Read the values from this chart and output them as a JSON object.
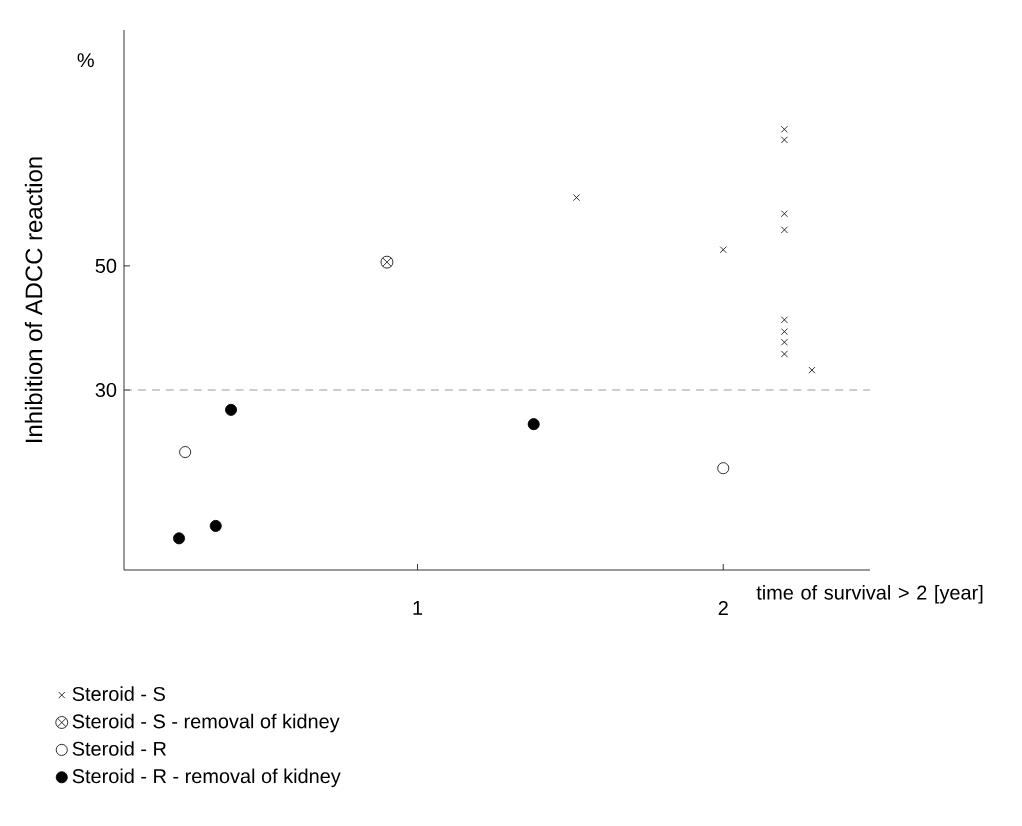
{
  "chart_data": {
    "type": "scatter",
    "ylabel": "Inhibition of ADCC reaction",
    "xlabel": "time of survival > 2 [year]",
    "annotations": [
      "%"
    ],
    "xlim": [
      0.04,
      2.48
    ],
    "xticks": [
      1,
      2
    ],
    "ylim": [
      1,
      88
    ],
    "yticks": [
      30,
      50
    ],
    "ref_lines": [
      {
        "axis": "y",
        "value": 30,
        "line_style": "dashed"
      }
    ],
    "grid": false,
    "legend": "bottom left",
    "series": [
      {
        "name": "Steroid - S",
        "color": "#000000",
        "marker": "cross",
        "x": [
          1.52,
          2.0,
          2.2,
          2.2,
          2.2,
          2.2,
          2.2,
          2.2,
          2.2,
          2.2,
          2.29
        ],
        "values": [
          61,
          52.6,
          72,
          70.3,
          58.4,
          55.8,
          41.3,
          39.4,
          37.7,
          35.8,
          33.2
        ]
      },
      {
        "name": "Steroid - S - removal of kidney",
        "color": "#000000",
        "x": [
          0.9
        ],
        "values": [
          50.6
        ]
      },
      {
        "name": "Steroid - R",
        "color": "#ffffff",
        "marker": "circle",
        "x": [
          0.24,
          2.0
        ],
        "values": [
          20,
          17.4
        ]
      },
      {
        "name": "Steroid - R - removal of kidney",
        "color": "#000000",
        "marker": "circle",
        "x": [
          0.39,
          1.38,
          0.34,
          0.22
        ],
        "values": [
          26.8,
          24.5,
          8.1,
          6.1
        ]
      }
    ]
  }
}
